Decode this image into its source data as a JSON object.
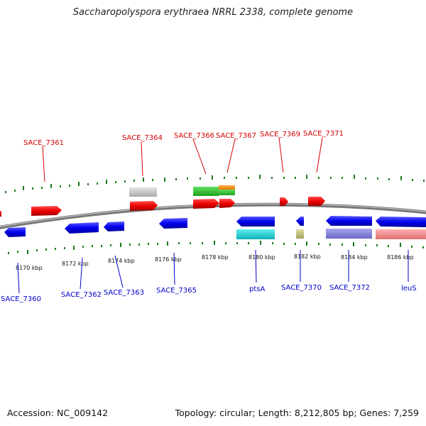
{
  "title": "Saccharopolyspora erythraea NRRL 2338, complete genome",
  "accession": "Accession: NC_009142",
  "topology_line": "Topology: circular; Length: 8,212,805 bp; Genes: 7,259",
  "colors": {
    "label_top": "#d40000",
    "label_bottom": "#0000c8",
    "backbone": "#8a8a8a",
    "tick": "#1e7a1e"
  },
  "ticks": [
    "8170 kbp",
    "8172 kbp",
    "8174 kbp",
    "8176 kbp",
    "8178 kbp",
    "8180 kbp",
    "8182 kbp",
    "8184 kbp",
    "8186 kbp"
  ],
  "labels_top": [
    "SACE_7361",
    "SACE_7364",
    "SACE_7366",
    "SACE_7367",
    "SACE_7369",
    "SACE_7371"
  ],
  "labels_bottom": [
    "SACE_7360",
    "SACE_7362",
    "SACE_7363",
    "SACE_7365",
    "ptsA",
    "SACE_7370",
    "SACE_7372",
    "leuS"
  ]
}
